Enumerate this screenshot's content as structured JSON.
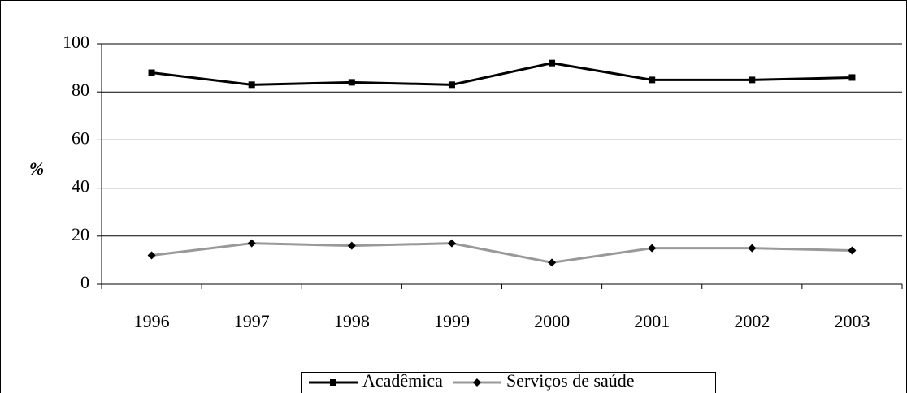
{
  "chart_data": {
    "type": "line",
    "y_label": "%",
    "categories": [
      "1996",
      "1997",
      "1998",
      "1999",
      "2000",
      "2001",
      "2002",
      "2003"
    ],
    "series": [
      {
        "name": "Acadêmica",
        "color": "#000000",
        "marker": "square",
        "values": [
          88,
          83,
          84,
          83,
          92,
          85,
          85,
          86
        ]
      },
      {
        "name": "Serviços de saúde",
        "color": "#999999",
        "marker": "diamond",
        "values": [
          12,
          17,
          16,
          17,
          9,
          15,
          15,
          14
        ]
      }
    ],
    "ylim": [
      0,
      100
    ],
    "yticks": [
      0,
      20,
      40,
      60,
      80,
      100
    ],
    "grid": true,
    "legend": "bottom"
  }
}
